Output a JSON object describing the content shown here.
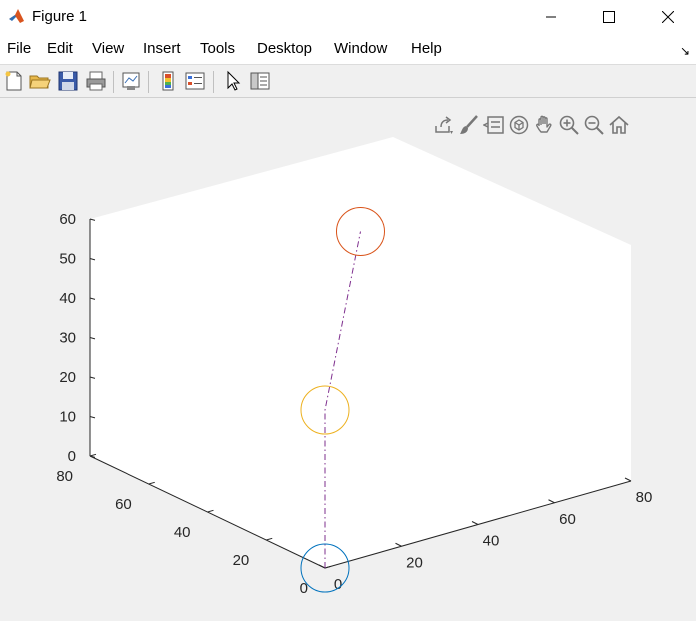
{
  "window": {
    "title": "Figure 1",
    "controls": [
      "minimize",
      "maximize",
      "close"
    ]
  },
  "menu": [
    "File",
    "Edit",
    "View",
    "Insert",
    "Tools",
    "Desktop",
    "Window",
    "Help"
  ],
  "toolbar_icons": [
    "new-figure-icon",
    "open-file-icon",
    "save-icon",
    "print-icon",
    "link-plot-icon",
    "colorbar-icon",
    "legend-icon",
    "edit-plot-pointer-icon",
    "property-inspector-icon"
  ],
  "axes_toolbar_icons": [
    "export-icon",
    "brush-icon",
    "data-tips-icon",
    "rotate-3d-icon",
    "pan-icon",
    "zoom-in-icon",
    "zoom-out-icon",
    "home-icon"
  ],
  "colors": {
    "series_blue": "#0072BD",
    "series_orange": "#D95319",
    "series_yellow": "#EDB120",
    "line_purple": "#7E2F8E"
  },
  "chart_data": {
    "type": "scatter",
    "view": "3d",
    "xlim": [
      0,
      80
    ],
    "ylim": [
      0,
      80
    ],
    "zlim": [
      0,
      60
    ],
    "x_ticks": [
      "0",
      "20",
      "40",
      "60",
      "80"
    ],
    "y_ticks": [
      "0",
      "20",
      "40",
      "60",
      "80"
    ],
    "z_ticks": [
      "0",
      "10",
      "20",
      "30",
      "40",
      "50",
      "60"
    ],
    "markers": [
      {
        "x": 0,
        "y": 0,
        "z": 0,
        "marker": "circle",
        "color": "#0072BD"
      },
      {
        "x": 0,
        "y": 0,
        "z": 40,
        "marker": "circle",
        "color": "#EDB120"
      },
      {
        "x": 40,
        "y": 40,
        "z": 60,
        "marker": "circle",
        "color": "#D95319"
      }
    ],
    "line": {
      "style": "dash-dot",
      "color": "#7E2F8E",
      "points": [
        {
          "x": 0,
          "y": 0,
          "z": 0
        },
        {
          "x": 0,
          "y": 0,
          "z": 40
        },
        {
          "x": 40,
          "y": 40,
          "z": 60
        }
      ]
    },
    "grid": false
  }
}
